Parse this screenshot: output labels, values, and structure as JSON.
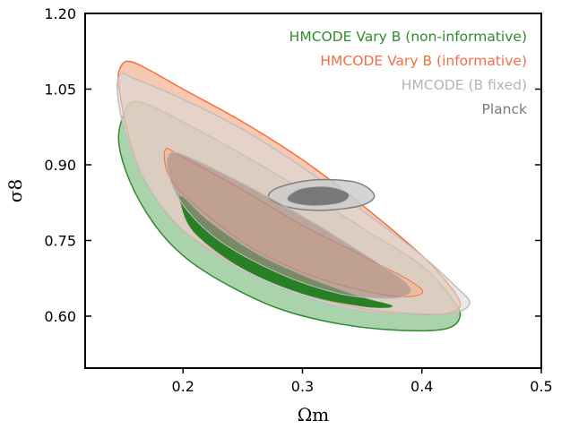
{
  "chart_data": {
    "type": "contour",
    "xlabel": "Ωm",
    "ylabel": "σ8",
    "xlim": [
      0.118,
      0.5
    ],
    "ylim": [
      0.497,
      1.2
    ],
    "xticks": [
      0.2,
      0.3,
      0.4,
      0.5
    ],
    "yticks": [
      0.6,
      0.75,
      0.9,
      1.05,
      1.2
    ],
    "xtick_labels": [
      "0.2",
      "0.3",
      "0.4",
      "0.5"
    ],
    "ytick_labels": [
      "0.60",
      "0.75",
      "0.90",
      "1.05",
      "1.20"
    ],
    "grid": false,
    "legend_position": "top-right",
    "series": [
      {
        "name": "HMCODE Vary B (non-informative)",
        "color": "#2e8b2e",
        "fill_outer": "#8fc48f",
        "fill_inner": "#1e7a1e",
        "contours": {
          "outer_95": [
            [
              0.146,
              0.95
            ],
            [
              0.152,
              1.01
            ],
            [
              0.16,
              1.025
            ],
            [
              0.175,
              1.015
            ],
            [
              0.2,
              0.985
            ],
            [
              0.25,
              0.92
            ],
            [
              0.3,
              0.85
            ],
            [
              0.35,
              0.775
            ],
            [
              0.4,
              0.7
            ],
            [
              0.425,
              0.635
            ],
            [
              0.432,
              0.6
            ],
            [
              0.42,
              0.575
            ],
            [
              0.38,
              0.572
            ],
            [
              0.33,
              0.585
            ],
            [
              0.28,
              0.615
            ],
            [
              0.235,
              0.665
            ],
            [
              0.2,
              0.72
            ],
            [
              0.175,
              0.785
            ],
            [
              0.155,
              0.87
            ]
          ],
          "inner_68": [
            [
              0.2,
              0.835
            ],
            [
              0.22,
              0.79
            ],
            [
              0.26,
              0.725
            ],
            [
              0.3,
              0.68
            ],
            [
              0.345,
              0.64
            ],
            [
              0.375,
              0.62
            ],
            [
              0.35,
              0.62
            ],
            [
              0.3,
              0.645
            ],
            [
              0.25,
              0.695
            ],
            [
              0.21,
              0.765
            ],
            [
              0.198,
              0.825
            ]
          ]
        }
      },
      {
        "name": "HMCODE Vary B (informative)",
        "color": "#f07040",
        "fill_outer": "#f5b090",
        "fill_inner": "#f5b090",
        "contours": {
          "outer_95": [
            [
              0.146,
              1.06
            ],
            [
              0.148,
              1.095
            ],
            [
              0.155,
              1.105
            ],
            [
              0.17,
              1.09
            ],
            [
              0.2,
              1.05
            ],
            [
              0.25,
              0.985
            ],
            [
              0.3,
              0.91
            ],
            [
              0.35,
              0.82
            ],
            [
              0.4,
              0.72
            ],
            [
              0.425,
              0.655
            ],
            [
              0.432,
              0.62
            ],
            [
              0.42,
              0.605
            ],
            [
              0.39,
              0.605
            ],
            [
              0.35,
              0.615
            ],
            [
              0.3,
              0.645
            ],
            [
              0.25,
              0.695
            ],
            [
              0.2,
              0.77
            ],
            [
              0.17,
              0.86
            ],
            [
              0.155,
              0.95
            ]
          ],
          "inner_68": [
            [
              0.185,
              0.93
            ],
            [
              0.2,
              0.915
            ],
            [
              0.25,
              0.85
            ],
            [
              0.3,
              0.78
            ],
            [
              0.35,
              0.72
            ],
            [
              0.39,
              0.67
            ],
            [
              0.4,
              0.645
            ],
            [
              0.375,
              0.64
            ],
            [
              0.32,
              0.67
            ],
            [
              0.265,
              0.725
            ],
            [
              0.22,
              0.8
            ],
            [
              0.19,
              0.87
            ]
          ]
        }
      },
      {
        "name": "HMCODE (B fixed)",
        "color": "#bfbfbf",
        "fill_outer": "#d9d9d9",
        "fill_inner": "#a89088",
        "contours": {
          "outer_95": [
            [
              0.145,
              1.045
            ],
            [
              0.148,
              1.08
            ],
            [
              0.16,
              1.07
            ],
            [
              0.2,
              1.03
            ],
            [
              0.25,
              0.97
            ],
            [
              0.3,
              0.895
            ],
            [
              0.35,
              0.81
            ],
            [
              0.4,
              0.72
            ],
            [
              0.43,
              0.655
            ],
            [
              0.44,
              0.625
            ],
            [
              0.425,
              0.605
            ],
            [
              0.39,
              0.605
            ],
            [
              0.35,
              0.61
            ],
            [
              0.3,
              0.64
            ],
            [
              0.25,
              0.69
            ],
            [
              0.2,
              0.77
            ],
            [
              0.17,
              0.86
            ],
            [
              0.152,
              0.96
            ]
          ],
          "inner_68": [
            [
              0.188,
              0.92
            ],
            [
              0.2,
              0.92
            ],
            [
              0.24,
              0.875
            ],
            [
              0.28,
              0.825
            ],
            [
              0.32,
              0.77
            ],
            [
              0.36,
              0.71
            ],
            [
              0.385,
              0.67
            ],
            [
              0.39,
              0.645
            ],
            [
              0.37,
              0.635
            ],
            [
              0.33,
              0.645
            ],
            [
              0.28,
              0.685
            ],
            [
              0.23,
              0.75
            ],
            [
              0.2,
              0.82
            ],
            [
              0.188,
              0.88
            ]
          ]
        }
      },
      {
        "name": "Planck",
        "color": "#7f7f7f",
        "fill_outer": "#cccccc",
        "fill_inner": "#707070",
        "contours": {
          "outer_95": [
            [
              0.272,
              0.835
            ],
            [
              0.28,
              0.855
            ],
            [
              0.31,
              0.87
            ],
            [
              0.345,
              0.865
            ],
            [
              0.36,
              0.84
            ],
            [
              0.35,
              0.82
            ],
            [
              0.32,
              0.81
            ],
            [
              0.29,
              0.815
            ]
          ],
          "inner_68": [
            [
              0.288,
              0.835
            ],
            [
              0.3,
              0.852
            ],
            [
              0.322,
              0.855
            ],
            [
              0.338,
              0.842
            ],
            [
              0.332,
              0.826
            ],
            [
              0.31,
              0.82
            ],
            [
              0.293,
              0.825
            ]
          ]
        }
      }
    ]
  }
}
